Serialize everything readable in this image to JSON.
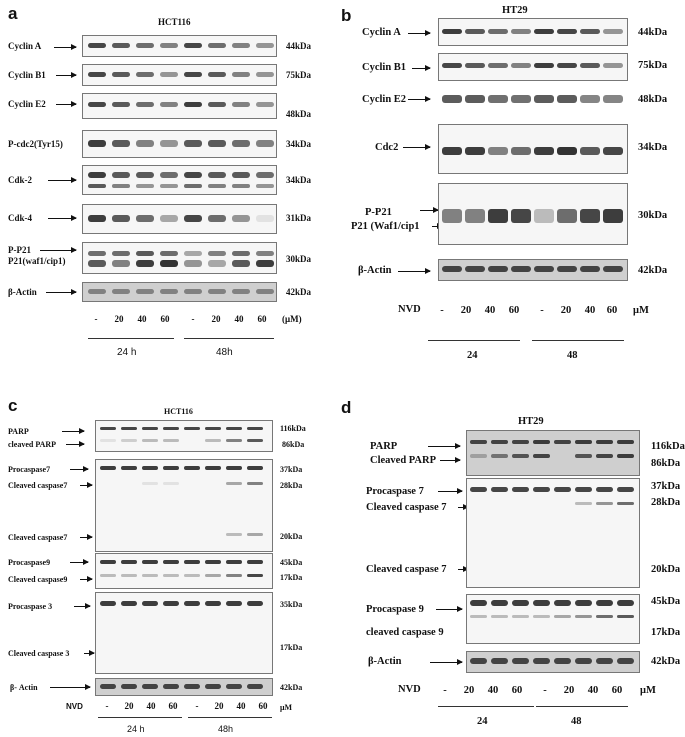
{
  "panel_a": {
    "letter": "a",
    "title": "HCT116",
    "rows": [
      {
        "label": "Cyclin A",
        "kda": "44kDa"
      },
      {
        "label": "Cyclin B1",
        "kda": "75kDa"
      },
      {
        "label": "Cyclin E2",
        "kda": "48kDa"
      },
      {
        "label": "P-cdc2(Tyr15)",
        "kda": "34kDa"
      },
      {
        "label": "Cdk-2",
        "kda": "34kDa"
      },
      {
        "label": "Cdk-4",
        "kda": "31kDa"
      },
      {
        "label": "P-P21",
        "label2": "P21(waf1/cip1)",
        "kda": "30kDa"
      },
      {
        "label": "β-Actin",
        "kda": "42kDa"
      }
    ],
    "lanes": [
      "-",
      "20",
      "40",
      "60",
      "-",
      "20",
      "40",
      "60"
    ],
    "unit": "(μM)",
    "times": [
      "24 h",
      "48h"
    ]
  },
  "panel_b": {
    "letter": "b",
    "title": "HT29",
    "rows": [
      {
        "label": "Cyclin A",
        "kda": "44kDa"
      },
      {
        "label": "Cyclin B1",
        "kda": "75kDa"
      },
      {
        "label": "Cyclin E2",
        "kda": "48kDa"
      },
      {
        "label": "Cdc2",
        "kda": "34kDa"
      },
      {
        "label": "P-P21",
        "label2": "P21 (Waf1/cip1",
        "kda": "30kDa"
      },
      {
        "label": "β-Actin",
        "kda": "42kDa"
      }
    ],
    "treatment": "NVD",
    "lanes": [
      "-",
      "20",
      "40",
      "60",
      "-",
      "20",
      "40",
      "60"
    ],
    "unit": "μM",
    "times": [
      "24",
      "48"
    ]
  },
  "panel_c": {
    "letter": "c",
    "title": "HCT116",
    "labels": {
      "parp": "PARP",
      "cleaved_parp": "cleaved PARP",
      "procaspase7": "Procaspase7",
      "cleaved_caspase7a": "Cleaved caspase7",
      "cleaved_caspase7b": "Cleaved caspase7",
      "procaspase9": "Procaspase9",
      "cleaved_caspase9": "Cleaved caspase9",
      "procaspase3": "Procaspase 3",
      "cleaved_caspase3": "Cleaved caspase 3",
      "actin": "β- Actin"
    },
    "kdas": {
      "k116": "116kDa",
      "k86": "86kDa",
      "k37": "37kDa",
      "k28": "28kDa",
      "k20": "20kDa",
      "k45": "45kDa",
      "k17": "17kDa",
      "k35": "35kDa",
      "k17b": "17kDa",
      "k42": "42kDa"
    },
    "treatment": "NVD",
    "lanes": [
      "-",
      "20",
      "40",
      "60",
      "-",
      "20",
      "40",
      "60"
    ],
    "unit": "μM",
    "times": [
      "24 h",
      "48h"
    ]
  },
  "panel_d": {
    "letter": "d",
    "title": "HT29",
    "labels": {
      "parp": "PARP",
      "cleaved_parp": "Cleaved PARP",
      "procaspase7": "Procaspase 7",
      "cleaved_caspase7a": "Cleaved caspase 7",
      "cleaved_caspase7b": "Cleaved caspase 7",
      "procaspase9": "Procaspase 9",
      "cleaved_caspase9": "cleaved caspase 9",
      "actin": "β-Actin"
    },
    "kdas": {
      "k116": "116kDa",
      "k86": "86kDa",
      "k37": "37kDa",
      "k28": "28kDa",
      "k20": "20kDa",
      "k45": "45kDa",
      "k17": "17kDa",
      "k42": "42kDa"
    },
    "treatment": "NVD",
    "lanes": [
      "-",
      "20",
      "40",
      "60",
      "-",
      "20",
      "40",
      "60"
    ],
    "unit": "μM",
    "times": [
      "24",
      "48"
    ]
  }
}
